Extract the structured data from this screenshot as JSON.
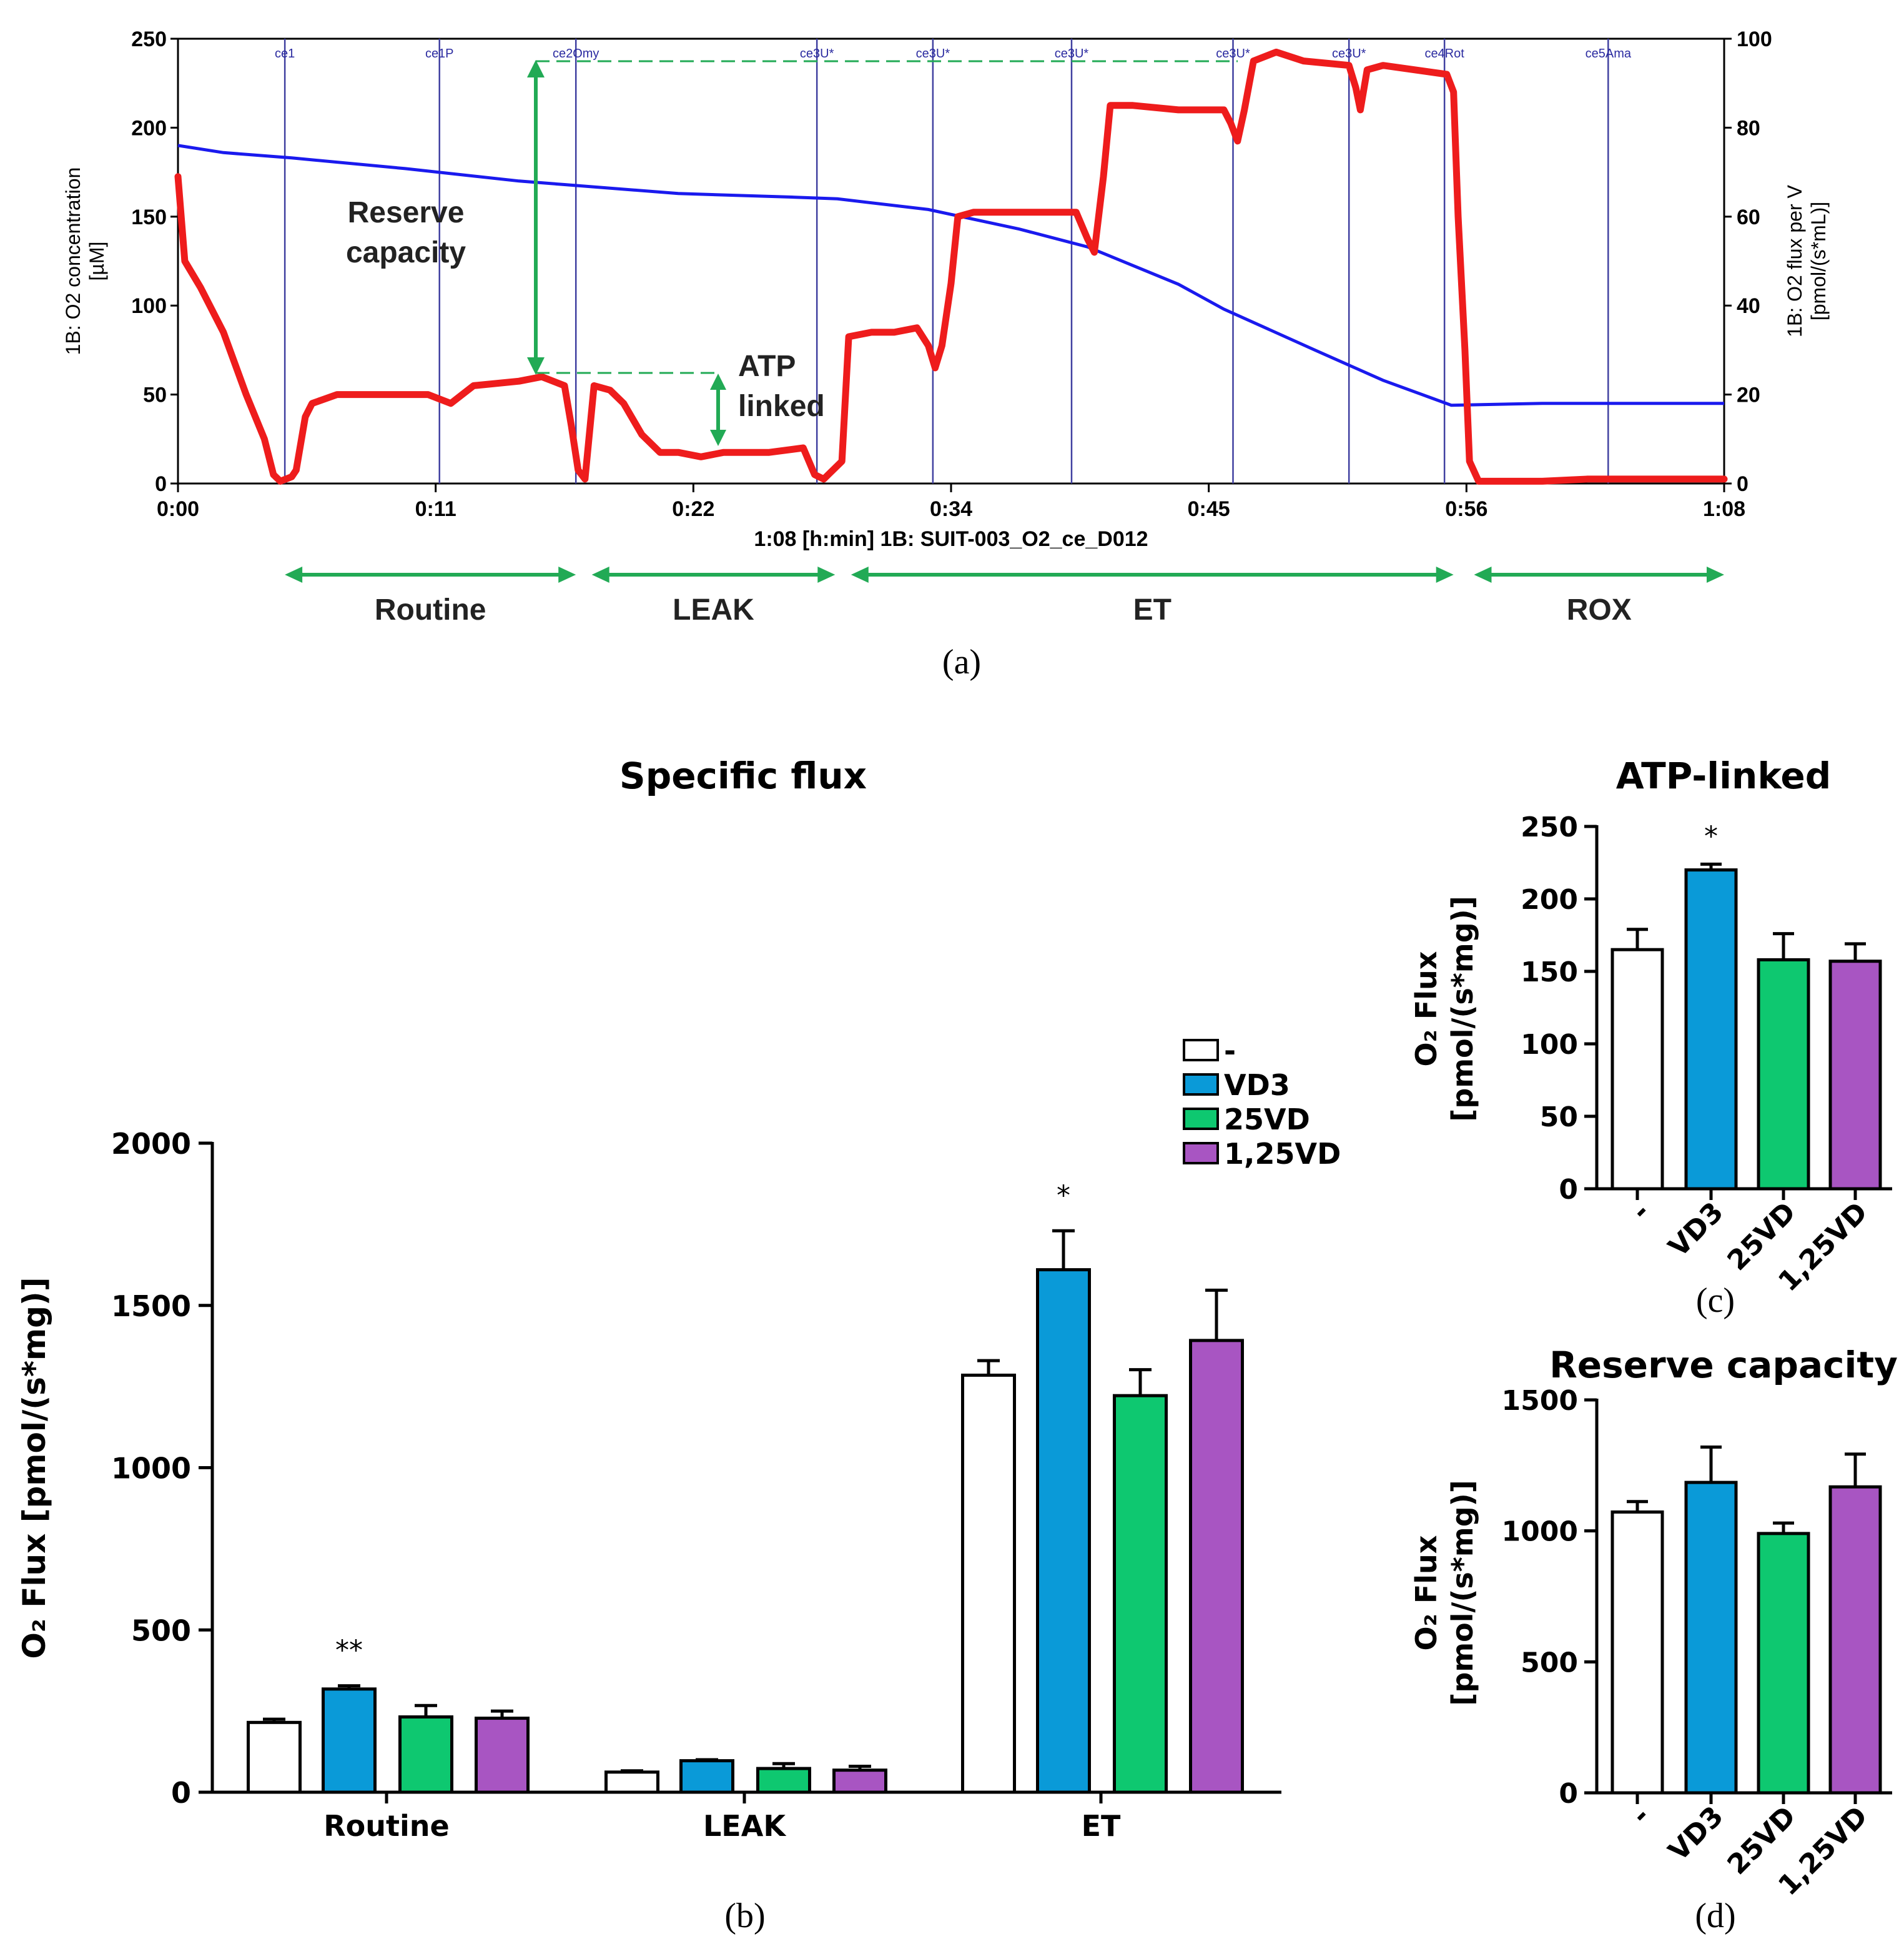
{
  "colors": {
    "red": "#ee1c1c",
    "blue": "#1a1aee",
    "green": "#22aa55",
    "event_line": "#4040a0",
    "bar_none": "#ffffff",
    "bar_vd3": "#0a9ad8",
    "bar_25vd": "#0ec870",
    "bar_125vd": "#a855c2"
  },
  "panel_labels": {
    "a": "(a)",
    "b": "(b)",
    "c": "(c)",
    "d": "(d)"
  },
  "chart_data": [
    {
      "id": "a",
      "type": "line",
      "xlabel": "1:08 [h:min] 1B: SUIT-003_O2_ce_D012",
      "ylabel_left": [
        "1B: O2 concentration",
        "[µM]"
      ],
      "ylabel_right": [
        "1B: O2 flux per V",
        "[pmol/(s*mL)]"
      ],
      "x_ticks": [
        "0:00",
        "0:11",
        "0:22",
        "0:34",
        "0:45",
        "0:56",
        "1:08"
      ],
      "x_range_min": [
        0,
        68
      ],
      "y_left_ticks": [
        0,
        50,
        100,
        150,
        200,
        250
      ],
      "y_left_range": [
        0,
        250
      ],
      "y_right_ticks": [
        0,
        20,
        40,
        60,
        80,
        100
      ],
      "y_right_range": [
        0,
        100
      ],
      "events": [
        {
          "label": "ce1",
          "t": 4.7
        },
        {
          "label": "ce1P",
          "t": 11.5
        },
        {
          "label": "ce2Omy",
          "t": 17.5
        },
        {
          "label": "ce3U*",
          "t": 28.1
        },
        {
          "label": "ce3U*",
          "t": 33.2
        },
        {
          "label": "ce3U*",
          "t": 39.3
        },
        {
          "label": "ce3U*",
          "t": 46.4
        },
        {
          "label": "ce3U*",
          "t": 51.5
        },
        {
          "label": "ce4Rot",
          "t": 55.7
        },
        {
          "label": "ce5Ama",
          "t": 62.9
        }
      ],
      "series": [
        {
          "name": "O2 concentration",
          "axis": "left",
          "points": [
            [
              0,
              190
            ],
            [
              2,
              186
            ],
            [
              5,
              183
            ],
            [
              10,
              177
            ],
            [
              15,
              170
            ],
            [
              17,
              168
            ],
            [
              22,
              163
            ],
            [
              27,
              161
            ],
            [
              29,
              160
            ],
            [
              33,
              154
            ],
            [
              37,
              143
            ],
            [
              40,
              133
            ],
            [
              44,
              112
            ],
            [
              46,
              98
            ],
            [
              50,
              75
            ],
            [
              53,
              58
            ],
            [
              56,
              44
            ],
            [
              60,
              45
            ],
            [
              68,
              45
            ]
          ]
        },
        {
          "name": "O2 flux per V",
          "axis": "right",
          "points": [
            [
              0,
              69
            ],
            [
              0.3,
              50
            ],
            [
              1,
              44
            ],
            [
              2,
              34
            ],
            [
              3,
              20
            ],
            [
              3.8,
              10
            ],
            [
              4.2,
              2
            ],
            [
              4.5,
              0.5
            ],
            [
              5,
              1.5
            ],
            [
              5.2,
              3
            ],
            [
              5.6,
              15
            ],
            [
              5.9,
              18
            ],
            [
              7,
              20
            ],
            [
              9,
              20
            ],
            [
              11,
              20
            ],
            [
              12,
              18
            ],
            [
              13,
              22
            ],
            [
              15,
              23
            ],
            [
              16,
              24
            ],
            [
              17,
              22
            ],
            [
              17.3,
              13
            ],
            [
              17.6,
              3
            ],
            [
              17.9,
              1
            ],
            [
              18.3,
              22
            ],
            [
              19,
              21
            ],
            [
              19.6,
              18
            ],
            [
              20.4,
              11
            ],
            [
              21.2,
              7
            ],
            [
              22,
              7
            ],
            [
              23,
              6
            ],
            [
              24,
              7
            ],
            [
              26,
              7
            ],
            [
              27.5,
              8
            ],
            [
              28,
              2
            ],
            [
              28.4,
              1
            ],
            [
              29.2,
              5
            ],
            [
              29.5,
              33
            ],
            [
              30.5,
              34
            ],
            [
              31.5,
              34
            ],
            [
              32.5,
              35
            ],
            [
              33,
              31
            ],
            [
              33.3,
              26
            ],
            [
              33.6,
              31
            ],
            [
              34,
              45
            ],
            [
              34.3,
              60
            ],
            [
              35,
              61
            ],
            [
              37,
              61
            ],
            [
              39.5,
              61
            ],
            [
              40,
              55
            ],
            [
              40.3,
              52
            ],
            [
              40.7,
              69
            ],
            [
              41,
              85
            ],
            [
              42,
              85
            ],
            [
              44,
              84
            ],
            [
              46,
              84
            ],
            [
              46.3,
              81
            ],
            [
              46.6,
              77
            ],
            [
              46.9,
              84
            ],
            [
              47.3,
              95
            ],
            [
              48.3,
              97
            ],
            [
              49.5,
              95
            ],
            [
              51.5,
              94
            ],
            [
              51.8,
              89
            ],
            [
              52,
              84
            ],
            [
              52.3,
              93
            ],
            [
              53,
              94
            ],
            [
              55.8,
              92
            ],
            [
              56.1,
              88
            ],
            [
              56.3,
              60
            ],
            [
              56.6,
              30
            ],
            [
              56.8,
              5
            ],
            [
              57.2,
              0.5
            ],
            [
              60,
              0.5
            ],
            [
              62,
              1
            ],
            [
              65,
              1
            ],
            [
              68,
              1
            ]
          ]
        }
      ],
      "annotations": {
        "reserve": [
          "Reserve",
          "capacity"
        ],
        "atp": [
          "ATP",
          "linked"
        ]
      },
      "phases": [
        {
          "label": "Routine",
          "t0": 4.7,
          "t1": 17.5
        },
        {
          "label": "LEAK",
          "t0": 18.2,
          "t1": 28.9
        },
        {
          "label": "ET",
          "t0": 29.6,
          "t1": 56.1
        },
        {
          "label": "ROX",
          "t0": 57.0,
          "t1": 68.0
        }
      ]
    },
    {
      "id": "b",
      "type": "bar",
      "title": "Specific flux",
      "ylabel": "O₂ Flux [pmol/(s*mg)]",
      "ylim": [
        0,
        2000
      ],
      "y_ticks": [
        0,
        500,
        1000,
        1500,
        2000
      ],
      "categories": [
        "Routine",
        "LEAK",
        "ET"
      ],
      "series": [
        {
          "name": "-",
          "values": [
            215,
            62,
            1285
          ],
          "errors": [
            10,
            4,
            45
          ]
        },
        {
          "name": "VD3",
          "values": [
            318,
            97,
            1610
          ],
          "errors": [
            10,
            3,
            120
          ]
        },
        {
          "name": "25VD",
          "values": [
            232,
            73,
            1222
          ],
          "errors": [
            35,
            15,
            80
          ]
        },
        {
          "name": "1,25VD",
          "values": [
            228,
            68,
            1392
          ],
          "errors": [
            22,
            12,
            155
          ]
        }
      ],
      "significance": [
        {
          "category": "Routine",
          "series": "VD3",
          "mark": "**"
        },
        {
          "category": "ET",
          "series": "VD3",
          "mark": "*"
        }
      ],
      "legend": [
        "-",
        "VD3",
        "25VD",
        "1,25VD"
      ]
    },
    {
      "id": "c",
      "type": "bar",
      "title": "ATP-linked",
      "ylabel": [
        "O₂ Flux",
        "[pmol/(s*mg)]"
      ],
      "ylim": [
        0,
        250
      ],
      "y_ticks": [
        0,
        50,
        100,
        150,
        200,
        250
      ],
      "categories": [
        "-",
        "VD3",
        "25VD",
        "1,25VD"
      ],
      "values": [
        165,
        220,
        158,
        157
      ],
      "errors": [
        14,
        4,
        18,
        12
      ],
      "significance": [
        {
          "category": "VD3",
          "mark": "*"
        }
      ]
    },
    {
      "id": "d",
      "type": "bar",
      "title": "Reserve capacity",
      "ylabel": [
        "O₂ Flux",
        "[pmol/(s*mg)]"
      ],
      "ylim": [
        0,
        1500
      ],
      "y_ticks": [
        0,
        500,
        1000,
        1500
      ],
      "categories": [
        "-",
        "VD3",
        "25VD",
        "1,25VD"
      ],
      "values": [
        1072,
        1185,
        990,
        1168
      ],
      "errors": [
        40,
        135,
        40,
        125
      ]
    }
  ]
}
